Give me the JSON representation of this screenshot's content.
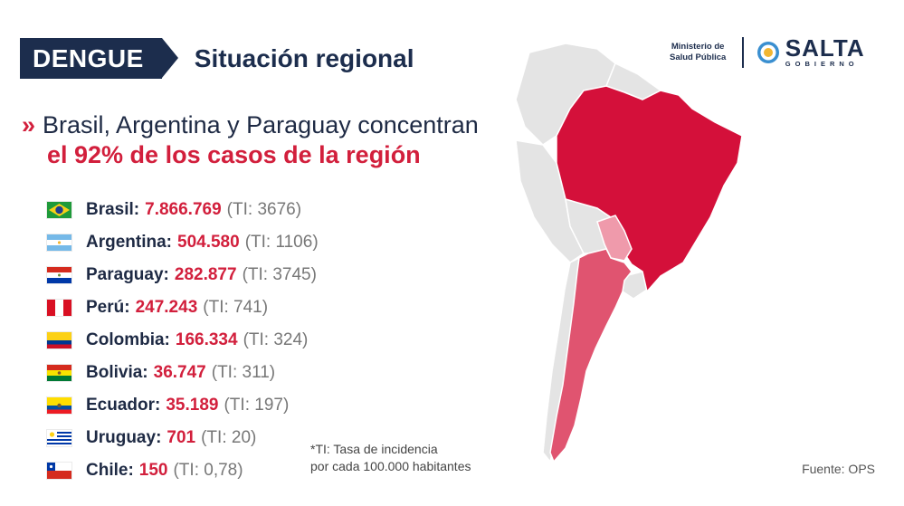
{
  "header": {
    "tag": "DENGUE",
    "subtitle": "Situación regional"
  },
  "logos": {
    "ministry_line1": "Ministerio de",
    "ministry_line2": "Salud Pública",
    "salta": "SALTA",
    "gobierno": "GOBIERNO"
  },
  "headline": {
    "chevron": "»",
    "line1": "Brasil, Argentina y Paraguay concentran",
    "line2": "el 92% de los casos de la región"
  },
  "countries": [
    {
      "name": "Brasil:",
      "cases": "7.866.769",
      "ti": "(TI: 3676)"
    },
    {
      "name": "Argentina:",
      "cases": "504.580",
      "ti": "(TI: 1106)"
    },
    {
      "name": "Paraguay:",
      "cases": "282.877",
      "ti": "(TI: 3745)"
    },
    {
      "name": "Perú:",
      "cases": "247.243",
      "ti": "(TI: 741)"
    },
    {
      "name": "Colombia:",
      "cases": "166.334",
      "ti": "(TI: 324)"
    },
    {
      "name": "Bolivia:",
      "cases": "36.747",
      "ti": "(TI: 311)"
    },
    {
      "name": "Ecuador:",
      "cases": "35.189",
      "ti": "(TI: 197)"
    },
    {
      "name": "Uruguay:",
      "cases": "701",
      "ti": "(TI: 20)"
    },
    {
      "name": "Chile:",
      "cases": "150",
      "ti": "(TI: 0,78)"
    }
  ],
  "note": {
    "line1": "*TI: Tasa de incidencia",
    "line2": "por cada 100.000 habitantes"
  },
  "source": "Fuente: OPS",
  "colors": {
    "navy": "#1c2d4d",
    "accent_red": "#d21f3c",
    "brasil_map": "#d4103a",
    "argentina_map": "#e05470",
    "paraguay_map": "#ef9aab",
    "other_map": "#e4e4e4"
  }
}
